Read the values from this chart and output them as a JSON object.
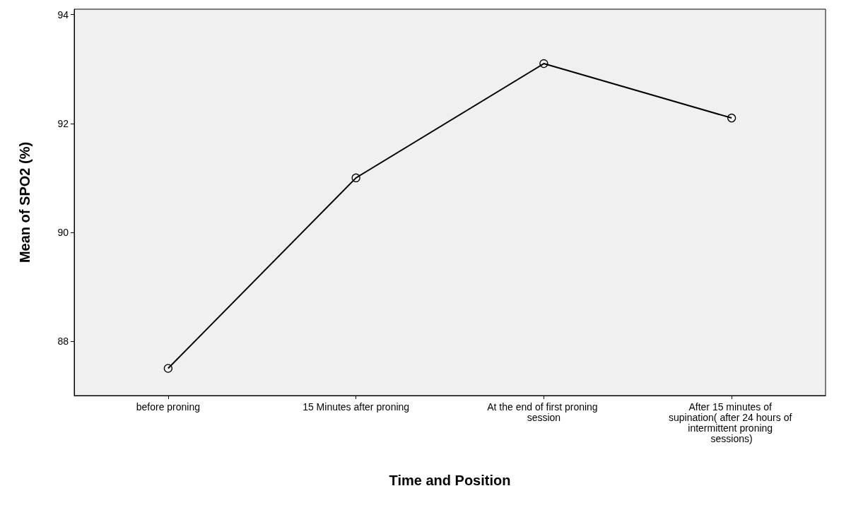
{
  "chart_data": {
    "type": "line",
    "xlabel": "Time and Position",
    "ylabel": "Mean of SPO2 (%)",
    "categories": [
      "before proning",
      "15 Minutes after proning",
      "At the end of first proning session",
      "After 15 minutes of supination( after 24 hours of intermittent proning sessions)"
    ],
    "values": [
      87.5,
      91.0,
      93.1,
      92.1
    ],
    "color": "#000000",
    "ylim": [
      87,
      94.1
    ],
    "yticks": [
      88,
      90,
      92,
      94
    ],
    "grid": false,
    "marker": "circle",
    "line_style": "solid"
  }
}
